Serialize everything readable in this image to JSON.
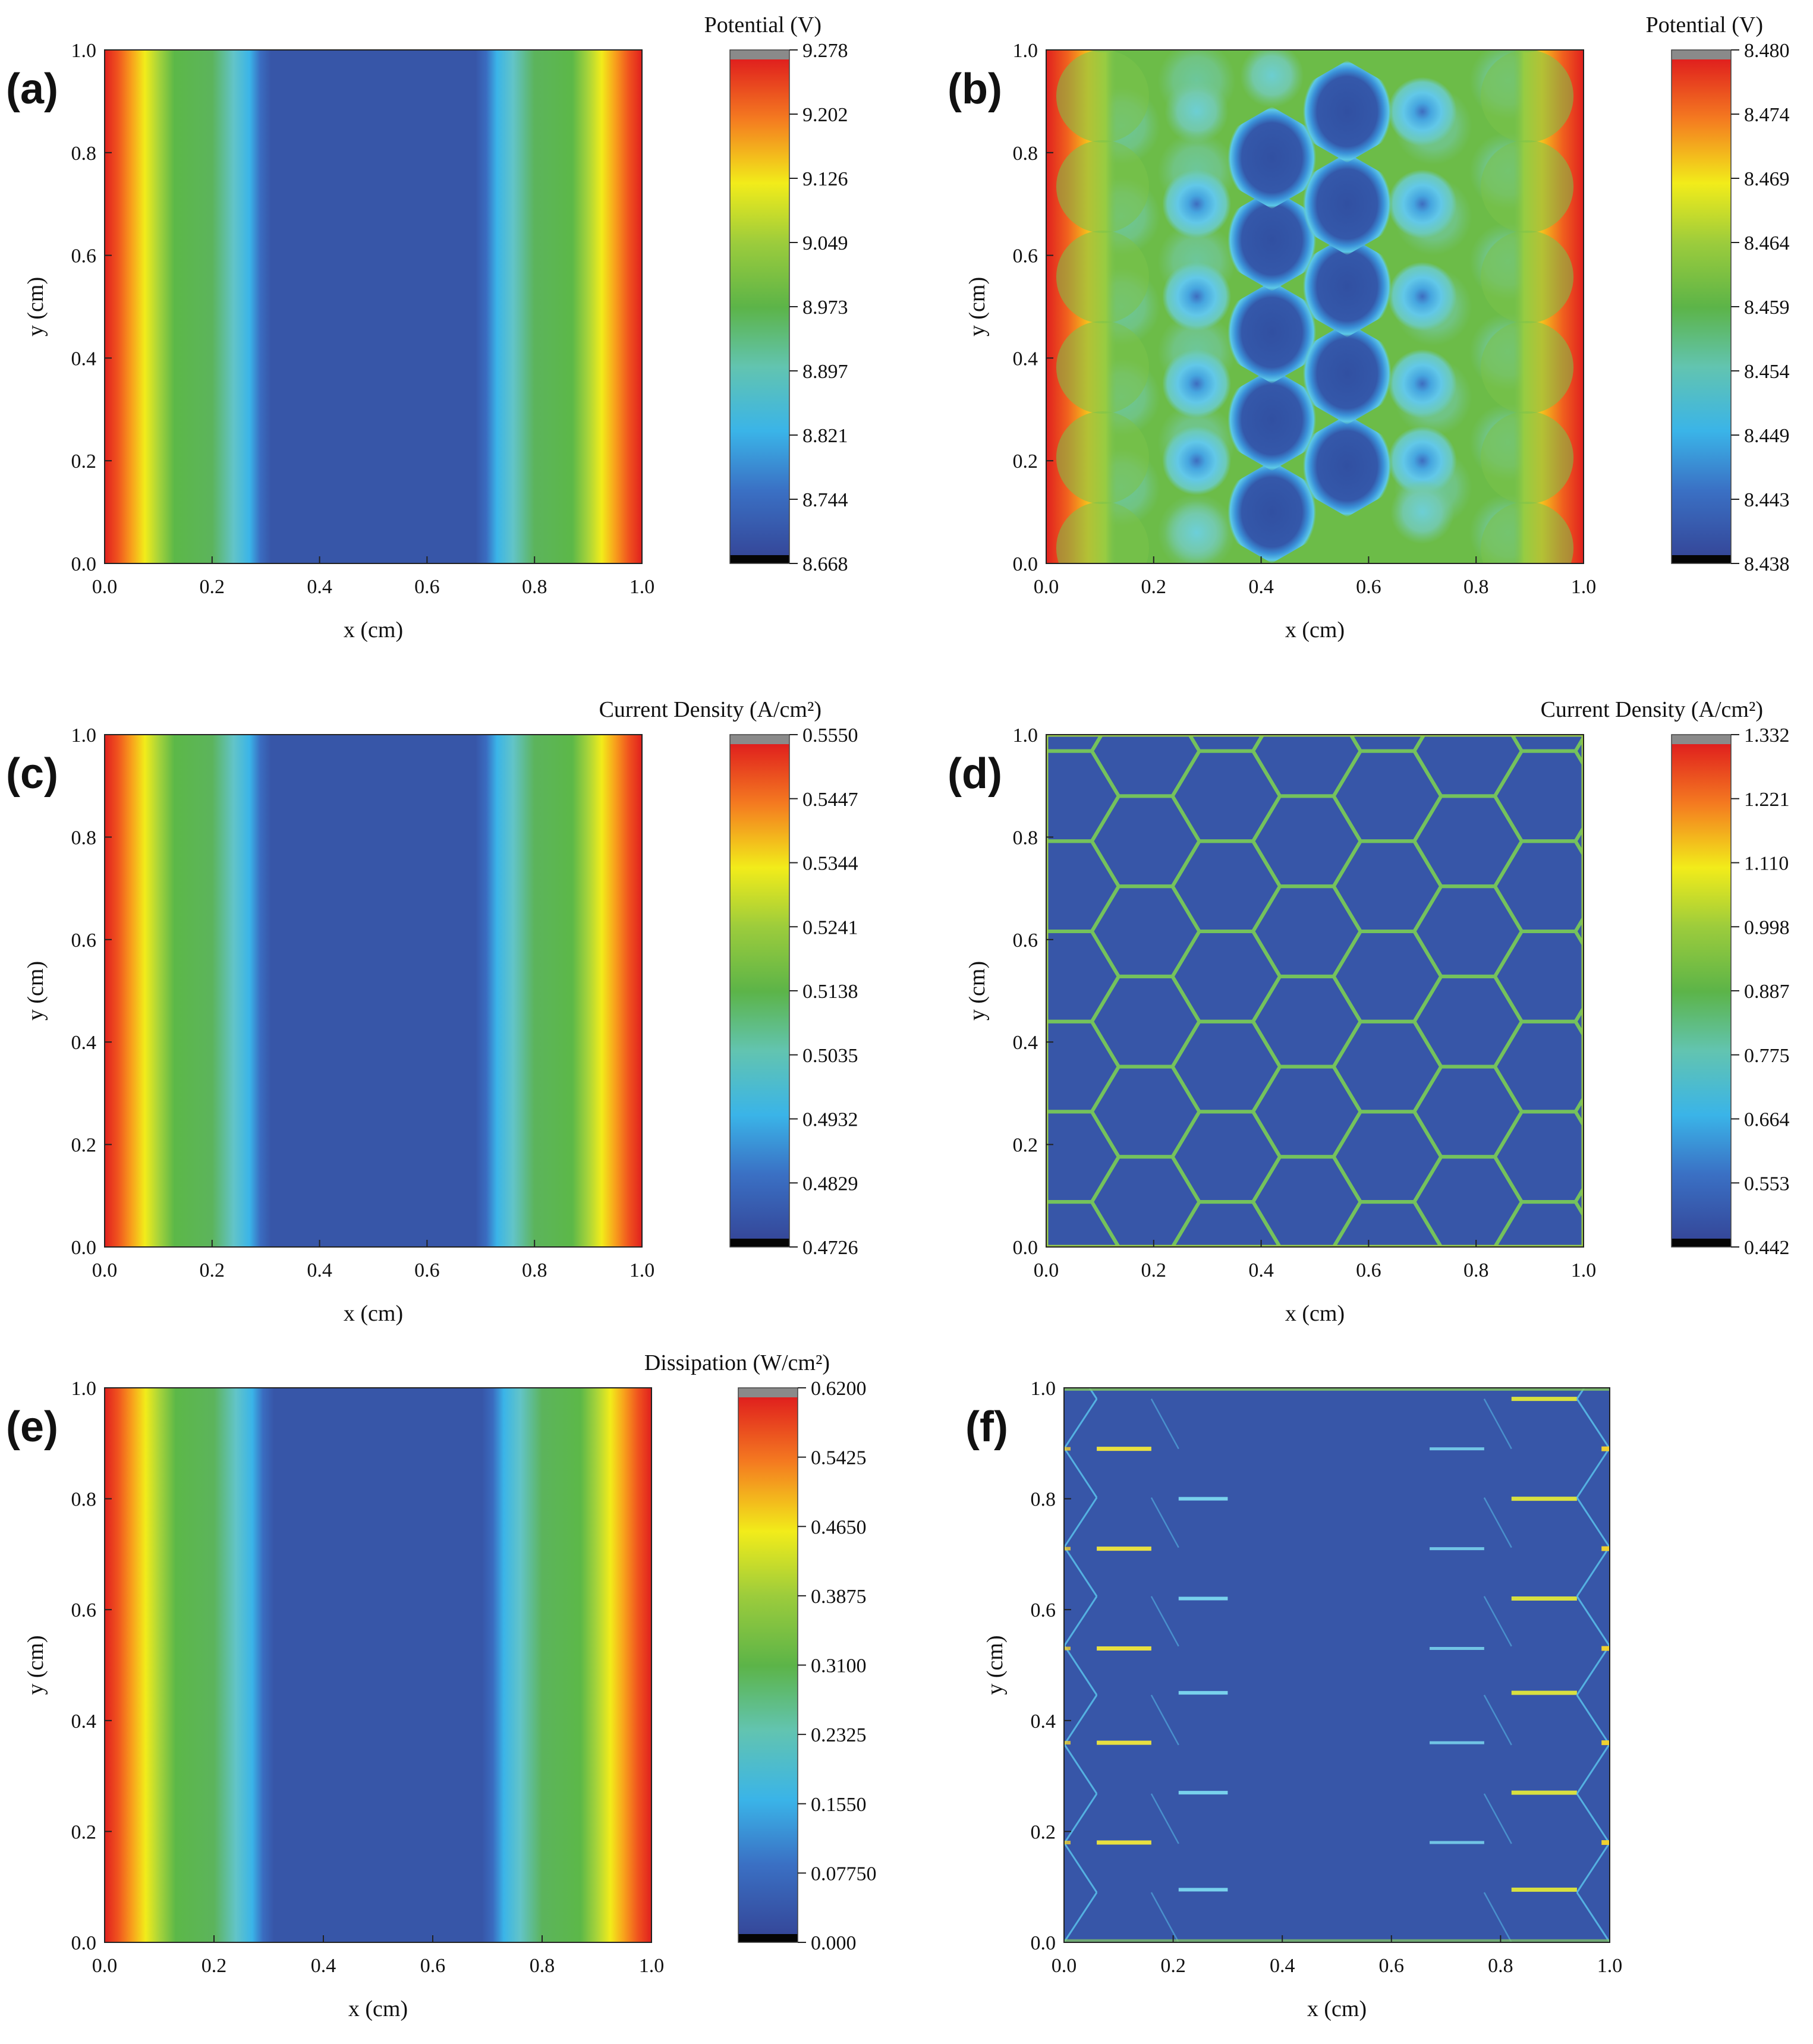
{
  "chart_data": [
    {
      "type": "heatmap",
      "panel_label": "(a)",
      "pattern": "vertical-gradient",
      "xlabel": "x (cm)",
      "ylabel": "y (cm)",
      "xlim": [
        0.0,
        1.0
      ],
      "ylim": [
        0.0,
        1.0
      ],
      "xticks": [
        "0.0",
        "0.2",
        "0.4",
        "0.6",
        "0.8",
        "1.0"
      ],
      "yticks": [
        "0.0",
        "0.2",
        "0.4",
        "0.6",
        "0.8",
        "1.0"
      ],
      "colorbar": {
        "title": "Potential (V)",
        "min": 8.668,
        "max": 9.278,
        "ticks": [
          "9.278",
          "9.202",
          "9.126",
          "9.049",
          "8.973",
          "8.897",
          "8.821",
          "8.744",
          "8.668"
        ]
      }
    },
    {
      "type": "heatmap",
      "panel_label": "(b)",
      "pattern": "honeycomb-potential",
      "xlabel": "x (cm)",
      "ylabel": "y (cm)",
      "xlim": [
        0.0,
        1.0
      ],
      "ylim": [
        0.0,
        1.0
      ],
      "xticks": [
        "0.0",
        "0.2",
        "0.4",
        "0.6",
        "0.8",
        "1.0"
      ],
      "yticks": [
        "0.0",
        "0.2",
        "0.4",
        "0.6",
        "0.8",
        "1.0"
      ],
      "colorbar": {
        "title": "Potential (V)",
        "min": 8.438,
        "max": 8.48,
        "ticks": [
          "8.480",
          "8.474",
          "8.469",
          "8.464",
          "8.459",
          "8.454",
          "8.449",
          "8.443",
          "8.438"
        ]
      }
    },
    {
      "type": "heatmap",
      "panel_label": "(c)",
      "pattern": "vertical-gradient",
      "xlabel": "x (cm)",
      "ylabel": "y (cm)",
      "xlim": [
        0.0,
        1.0
      ],
      "ylim": [
        0.0,
        1.0
      ],
      "xticks": [
        "0.0",
        "0.2",
        "0.4",
        "0.6",
        "0.8",
        "1.0"
      ],
      "yticks": [
        "0.0",
        "0.2",
        "0.4",
        "0.6",
        "0.8",
        "1.0"
      ],
      "colorbar": {
        "title": "Current Density (A/cm²)",
        "min": 0.4726,
        "max": 0.555,
        "ticks": [
          "0.5550",
          "0.5447",
          "0.5344",
          "0.5241",
          "0.5138",
          "0.5035",
          "0.4932",
          "0.4829",
          "0.4726"
        ]
      }
    },
    {
      "type": "heatmap",
      "panel_label": "(d)",
      "pattern": "honeycomb-lattice",
      "xlabel": "x (cm)",
      "ylabel": "y (cm)",
      "xlim": [
        0.0,
        1.0
      ],
      "ylim": [
        0.0,
        1.0
      ],
      "xticks": [
        "0.0",
        "0.2",
        "0.4",
        "0.6",
        "0.8",
        "1.0"
      ],
      "yticks": [
        "0.0",
        "0.2",
        "0.4",
        "0.6",
        "0.8",
        "1.0"
      ],
      "colorbar": {
        "title": "Current Density (A/cm²)",
        "min": 0.442,
        "max": 1.332,
        "ticks": [
          "1.332",
          "1.221",
          "1.110",
          "0.998",
          "0.887",
          "0.775",
          "0.664",
          "0.553",
          "0.442"
        ]
      }
    },
    {
      "type": "heatmap",
      "panel_label": "(e)",
      "pattern": "vertical-gradient",
      "xlabel": "x (cm)",
      "ylabel": "y (cm)",
      "xlim": [
        0.0,
        1.0
      ],
      "ylim": [
        0.0,
        1.0
      ],
      "xticks": [
        "0.0",
        "0.2",
        "0.4",
        "0.6",
        "0.8",
        "1.0"
      ],
      "yticks": [
        "0.0",
        "0.2",
        "0.4",
        "0.6",
        "0.8",
        "1.0"
      ],
      "colorbar": {
        "title": "Dissipation (W/cm²)",
        "min": 0.0,
        "max": 0.62,
        "ticks": [
          "0.6200",
          "0.5425",
          "0.4650",
          "0.3875",
          "0.3100",
          "0.2325",
          "0.1550",
          "0.07750",
          "0.000"
        ]
      }
    },
    {
      "type": "heatmap",
      "panel_label": "(f)",
      "pattern": "sparse-edges",
      "xlabel": "x (cm)",
      "ylabel": "y (cm)",
      "xlim": [
        0.0,
        1.0
      ],
      "ylim": [
        0.0,
        1.0
      ],
      "xticks": [
        "0.0",
        "0.2",
        "0.4",
        "0.6",
        "0.8",
        "1.0"
      ],
      "yticks": [
        "0.0",
        "0.2",
        "0.4",
        "0.6",
        "0.8",
        "1.0"
      ],
      "colorbar": null
    }
  ]
}
